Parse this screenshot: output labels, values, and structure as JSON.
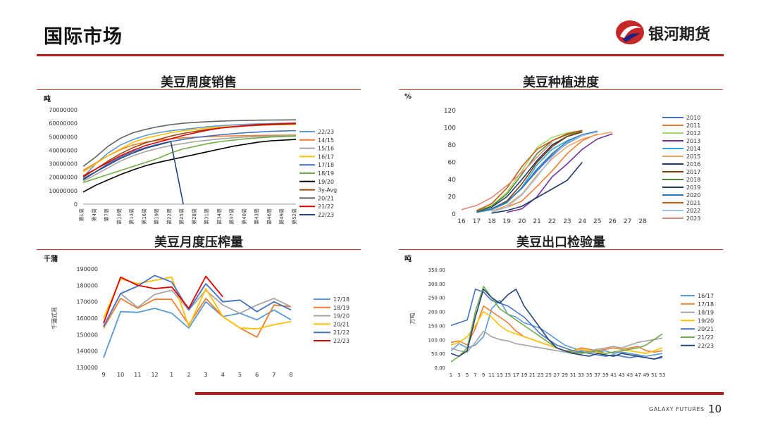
{
  "header": {
    "title": "国际市场",
    "brand": "银河期货"
  },
  "footer": {
    "brand": "GALAXY FUTURES",
    "page": "10"
  },
  "colors": {
    "accent": "#b71c1c"
  },
  "chart_data": [
    {
      "id": "weekly_sales",
      "type": "line",
      "title": "美豆周度销售",
      "unit": "吨",
      "ylim": [
        0,
        70000000
      ],
      "yticks": [
        "70000000",
        "60000000",
        "50000000",
        "40000000",
        "30000000",
        "20000000",
        "10000000",
        "0"
      ],
      "categories": [
        "第1周",
        "第4周",
        "第7周",
        "第10周",
        "第13周",
        "第16周",
        "第19周",
        "第22周",
        "第25周",
        "第28周",
        "第31周",
        "第34周",
        "第37周",
        "第40周",
        "第43周",
        "第46周",
        "第49周",
        "第52周"
      ],
      "legend_position": "right",
      "series": [
        {
          "name": "22/23",
          "color": "#5b9bd5",
          "values": [
            20000000,
            30000000,
            38000000,
            44000000,
            48000000,
            51000000,
            53000000,
            54500000,
            55500000,
            56500000,
            57500000,
            58200000,
            58800000,
            59300000,
            59600000,
            59800000,
            60000000,
            60200000
          ]
        },
        {
          "name": "14/15",
          "color": "#ed7d31",
          "values": [
            25000000,
            30500000,
            36000000,
            40500000,
            44000000,
            46000000,
            47500000,
            48500000,
            49200000,
            49700000,
            50100000,
            50400000,
            50600000,
            50800000,
            51000000,
            51100000,
            51200000,
            51300000
          ]
        },
        {
          "name": "15/16",
          "color": "#a5a5a5",
          "values": [
            17000000,
            22000000,
            27000000,
            32000000,
            36000000,
            39000000,
            41500000,
            43500000,
            45000000,
            46500000,
            47500000,
            48500000,
            49200000,
            49800000,
            50200000,
            50500000,
            50700000,
            50900000
          ]
        },
        {
          "name": "16/17",
          "color": "#ffc000",
          "values": [
            24000000,
            30000000,
            36000000,
            41000000,
            46000000,
            49000000,
            51000000,
            53000000,
            54500000,
            55500000,
            56500000,
            57200000,
            57800000,
            58200000,
            58500000,
            58800000,
            59000000,
            59200000
          ]
        },
        {
          "name": "17/18",
          "color": "#4472c4",
          "values": [
            19000000,
            24000000,
            30000000,
            35000000,
            39000000,
            42000000,
            44500000,
            46500000,
            48000000,
            49500000,
            50500000,
            51500000,
            52300000,
            53000000,
            53500000,
            54000000,
            54300000,
            54600000
          ]
        },
        {
          "name": "18/19",
          "color": "#70ad47",
          "values": [
            16000000,
            19000000,
            22000000,
            25000000,
            28000000,
            31000000,
            34000000,
            38000000,
            41000000,
            43000000,
            45000000,
            46500000,
            47500000,
            48500000,
            49200000,
            49800000,
            50200000,
            50500000
          ]
        },
        {
          "name": "19/20",
          "color": "#000000",
          "values": [
            9000000,
            14000000,
            18000000,
            22000000,
            25500000,
            28500000,
            31000000,
            33000000,
            35000000,
            37000000,
            39000000,
            41000000,
            43000000,
            44500000,
            46000000,
            47000000,
            47500000,
            48000000
          ]
        },
        {
          "name": "3y-Avg",
          "color": "#9e480e",
          "values": [
            20000000,
            26000000,
            32000000,
            37500000,
            42000000,
            45500000,
            48000000,
            50500000,
            52500000,
            54000000,
            55500000,
            56500000,
            57300000,
            58000000,
            58500000,
            58900000,
            59200000,
            59500000
          ]
        },
        {
          "name": "20/21",
          "color": "#636363",
          "values": [
            28000000,
            35000000,
            43000000,
            49000000,
            53000000,
            55500000,
            57500000,
            59000000,
            60000000,
            60700000,
            61200000,
            61600000,
            61900000,
            62100000,
            62300000,
            62400000,
            62500000,
            62600000
          ]
        },
        {
          "name": "21/22",
          "color": "#e00000",
          "values": [
            21000000,
            26000000,
            31000000,
            36000000,
            40000000,
            43500000,
            46000000,
            48500000,
            51000000,
            53000000,
            55000000,
            56500000,
            57500000,
            58300000,
            59000000,
            59400000,
            59700000,
            60000000
          ]
        },
        {
          "name": "22/23",
          "color": "#264478",
          "values": [
            18000000,
            24000000,
            29000000,
            34000000,
            38000000,
            41500000,
            44000000,
            46500000,
            48500,
            null,
            null,
            null,
            null,
            null,
            null,
            null,
            null,
            null
          ]
        }
      ]
    },
    {
      "id": "planting_progress",
      "type": "line",
      "title": "美豆种植进度",
      "unit": "%",
      "ylim": [
        0,
        120
      ],
      "yticks": [
        "120",
        "100",
        "80",
        "60",
        "40",
        "20",
        "0"
      ],
      "x": [
        "16",
        "17",
        "18",
        "19",
        "20",
        "21",
        "22",
        "23",
        "24",
        "25",
        "26",
        "27",
        "28"
      ],
      "legend_position": "right",
      "series": [
        {
          "name": "2010",
          "color": "#4472c4",
          "values": [
            null,
            2,
            6,
            14,
            30,
            50,
            68,
            82,
            91,
            96,
            null,
            null,
            null
          ]
        },
        {
          "name": "2011",
          "color": "#ed7d31",
          "values": [
            null,
            null,
            3,
            8,
            15,
            32,
            50,
            70,
            85,
            93,
            null,
            null,
            null
          ]
        },
        {
          "name": "2012",
          "color": "#a5d86e",
          "values": [
            null,
            3,
            10,
            25,
            50,
            77,
            89,
            94,
            97,
            null,
            null,
            null,
            null
          ]
        },
        {
          "name": "2013",
          "color": "#7030a0",
          "values": [
            null,
            null,
            null,
            2,
            6,
            20,
            43,
            58,
            75,
            87,
            93,
            null,
            null
          ]
        },
        {
          "name": "2014",
          "color": "#2ea8d6",
          "values": [
            null,
            2,
            5,
            13,
            31,
            57,
            75,
            85,
            92,
            null,
            null,
            null,
            null
          ]
        },
        {
          "name": "2015",
          "color": "#f4a460",
          "values": [
            null,
            null,
            3,
            10,
            23,
            45,
            64,
            78,
            87,
            92,
            95,
            null,
            null
          ]
        },
        {
          "name": "2016",
          "color": "#1f3864",
          "values": [
            null,
            3,
            8,
            20,
            40,
            62,
            80,
            90,
            95,
            null,
            null,
            null,
            null
          ]
        },
        {
          "name": "2017",
          "color": "#843c0c",
          "values": [
            null,
            2,
            6,
            15,
            35,
            60,
            78,
            90,
            95,
            null,
            null,
            null,
            null
          ]
        },
        {
          "name": "2018",
          "color": "#548235",
          "values": [
            null,
            3,
            9,
            23,
            46,
            70,
            85,
            92,
            96,
            null,
            null,
            null,
            null
          ]
        },
        {
          "name": "2019",
          "color": "#203864",
          "values": [
            null,
            null,
            1,
            4,
            9,
            19,
            29,
            39,
            60,
            null,
            null,
            null,
            null
          ]
        },
        {
          "name": "2020",
          "color": "#2e75b6",
          "values": [
            null,
            2,
            6,
            14,
            30,
            52,
            70,
            84,
            92,
            96,
            null,
            null,
            null
          ]
        },
        {
          "name": "2021",
          "color": "#c55a11",
          "values": [
            null,
            4,
            12,
            30,
            55,
            75,
            85,
            93,
            97,
            null,
            null,
            null,
            null
          ]
        },
        {
          "name": "2022",
          "color": "#9dc3e6",
          "values": [
            null,
            null,
            2,
            8,
            22,
            43,
            66,
            83,
            91,
            95,
            null,
            null,
            null
          ]
        },
        {
          "name": "2023",
          "color": "#e0887a",
          "values": [
            5,
            10,
            19,
            33,
            48,
            66,
            83,
            null,
            null,
            null,
            null,
            null,
            null
          ]
        }
      ]
    },
    {
      "id": "monthly_crush",
      "type": "line",
      "title": "美豆月度压榨量",
      "unit": "千蒲",
      "ylabel": "千蒲式耳",
      "ylim": [
        130000,
        190000
      ],
      "yticks": [
        "190000",
        "180000",
        "170000",
        "160000",
        "150000",
        "140000",
        "130000"
      ],
      "categories": [
        "9",
        "10",
        "11",
        "12",
        "1",
        "2",
        "3",
        "4",
        "5",
        "6",
        "7",
        "8"
      ],
      "legend_position": "right",
      "series": [
        {
          "name": "17/18",
          "color": "#5b9bd5",
          "values": [
            136000,
            164000,
            163500,
            166000,
            163000,
            154000,
            170000,
            161000,
            163000,
            159000,
            165000,
            159000
          ]
        },
        {
          "name": "18/19",
          "color": "#ed7d31",
          "values": [
            154000,
            172000,
            166000,
            171500,
            171500,
            156000,
            172000,
            161000,
            154000,
            148500,
            168000,
            167000
          ]
        },
        {
          "name": "19/20",
          "color": "#a5a5a5",
          "values": [
            155000,
            175000,
            166500,
            174500,
            177000,
            165000,
            177000,
            168000,
            163000,
            168000,
            172000,
            167000
          ]
        },
        {
          "name": "20/21",
          "color": "#ffc000",
          "values": [
            160000,
            184000,
            181000,
            183000,
            185000,
            155000,
            178000,
            161000,
            154000,
            153500,
            156000,
            158000
          ]
        },
        {
          "name": "21/22",
          "color": "#4472c4",
          "values": [
            155000,
            175000,
            179500,
            186000,
            182000,
            165000,
            181000,
            170000,
            171000,
            164000,
            170000,
            165000
          ]
        },
        {
          "name": "22/23",
          "color": "#e00000",
          "values": [
            157000,
            185000,
            180000,
            178000,
            179000,
            166000,
            185500,
            173000,
            null,
            null,
            null,
            null
          ]
        }
      ]
    },
    {
      "id": "export_inspections",
      "type": "line",
      "title": "美豆出口检验量",
      "unit": "吨",
      "ylabel": "万吨",
      "ylim": [
        0,
        350
      ],
      "yticks": [
        "350.00",
        "300.00",
        "250.00",
        "200.00",
        "150.00",
        "100.00",
        "50.00",
        "0.00"
      ],
      "x_labels": [
        "1",
        "3",
        "5",
        "7",
        "9",
        "11",
        "13",
        "15",
        "17",
        "19",
        "21",
        "23",
        "25",
        "27",
        "29",
        "31",
        "33",
        "35",
        "37",
        "39",
        "41",
        "43",
        "45",
        "47",
        "49",
        "51",
        "53"
      ],
      "legend_position": "right",
      "series": [
        {
          "name": "16/17",
          "color": "#5b9bd5",
          "values": [
            60,
            85,
            70,
            80,
            110,
            210,
            240,
            190,
            180,
            160,
            150,
            140,
            120,
            100,
            80,
            70,
            60,
            55,
            55,
            60,
            50,
            55,
            50,
            45,
            40,
            45,
            50
          ]
        },
        {
          "name": "17/18",
          "color": "#ed7d31",
          "values": [
            90,
            95,
            80,
            140,
            220,
            200,
            180,
            160,
            130,
            110,
            100,
            90,
            80,
            70,
            60,
            60,
            70,
            65,
            60,
            65,
            70,
            65,
            70,
            75,
            60,
            55,
            60
          ]
        },
        {
          "name": "18/19",
          "color": "#a5a5a5",
          "values": [
            70,
            60,
            55,
            90,
            130,
            110,
            100,
            95,
            85,
            80,
            75,
            70,
            65,
            60,
            55,
            50,
            55,
            60,
            65,
            70,
            75,
            70,
            80,
            90,
            95,
            100,
            105
          ]
        },
        {
          "name": "19/20",
          "color": "#ffc000",
          "values": [
            80,
            90,
            110,
            150,
            200,
            180,
            150,
            130,
            120,
            110,
            100,
            90,
            80,
            70,
            60,
            60,
            65,
            60,
            55,
            50,
            55,
            60,
            60,
            55,
            50,
            60,
            70
          ]
        },
        {
          "name": "20/21",
          "color": "#4472c4",
          "values": [
            150,
            160,
            170,
            280,
            270,
            240,
            230,
            220,
            200,
            180,
            150,
            120,
            100,
            80,
            70,
            60,
            55,
            50,
            45,
            40,
            45,
            40,
            35,
            40,
            35,
            30,
            35
          ]
        },
        {
          "name": "21/22",
          "color": "#70ad47",
          "values": [
            20,
            40,
            70,
            200,
            290,
            250,
            210,
            190,
            170,
            150,
            130,
            110,
            90,
            70,
            60,
            55,
            50,
            55,
            60,
            50,
            55,
            60,
            65,
            70,
            80,
            100,
            120
          ]
        },
        {
          "name": "22/23",
          "color": "#264478",
          "values": [
            50,
            40,
            60,
            180,
            280,
            250,
            230,
            260,
            280,
            220,
            180,
            140,
            100,
            70,
            60,
            50,
            45,
            40,
            50,
            45,
            40,
            50,
            45,
            40,
            35,
            30,
            40
          ]
        }
      ]
    }
  ]
}
